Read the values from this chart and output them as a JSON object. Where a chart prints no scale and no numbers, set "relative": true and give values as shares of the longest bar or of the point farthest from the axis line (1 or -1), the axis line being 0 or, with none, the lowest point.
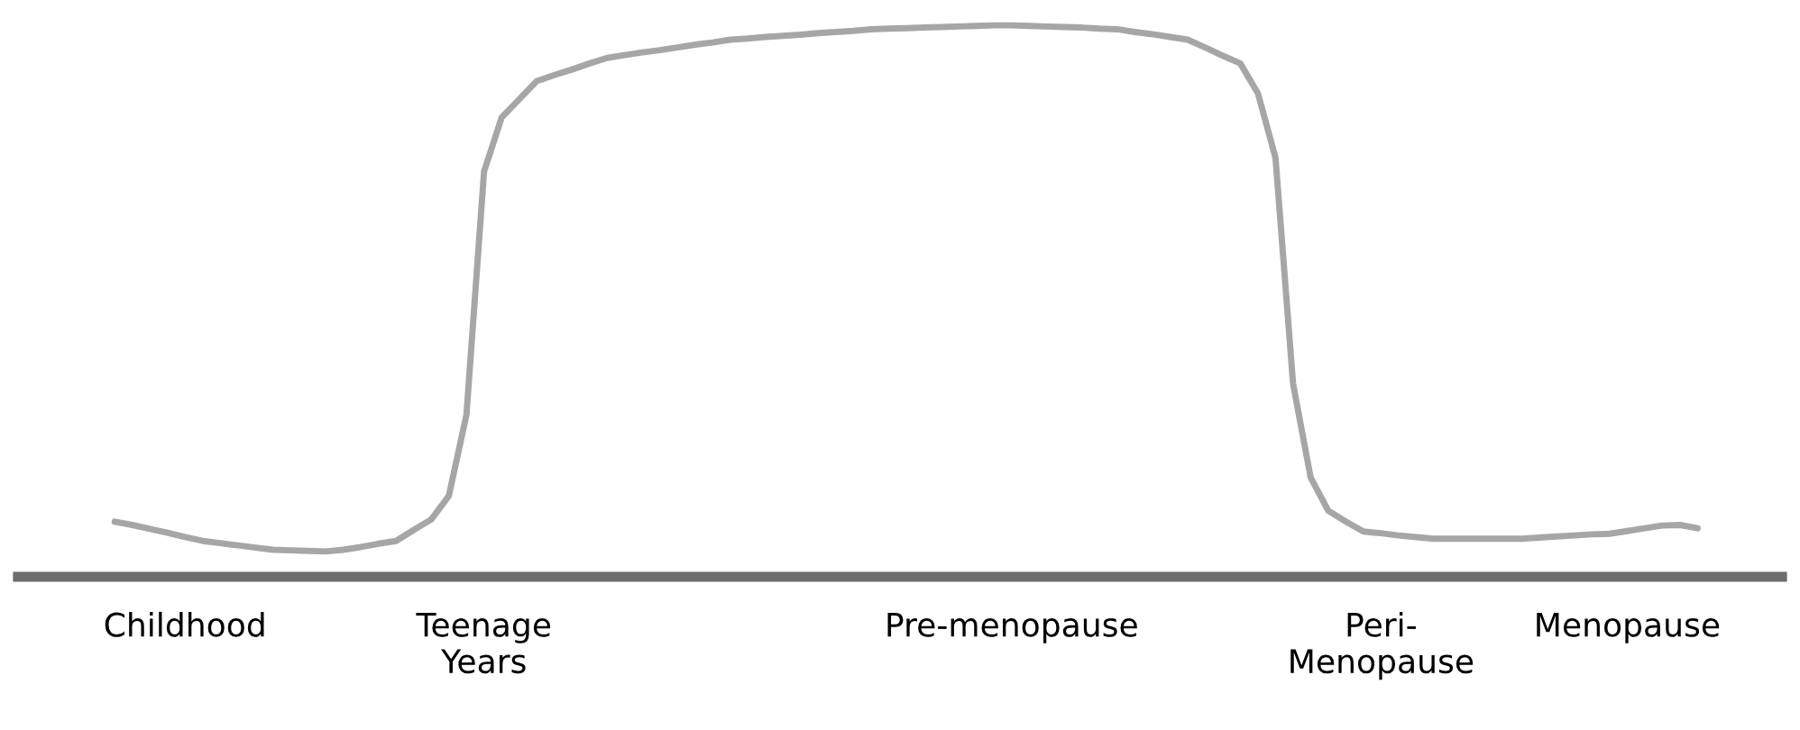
{
  "chart_data": {
    "type": "line",
    "relative": true,
    "categories": [
      null,
      null,
      null,
      null,
      "Childhood",
      null,
      null,
      null,
      null,
      null,
      null,
      null,
      null,
      null,
      null,
      null,
      null,
      null,
      null,
      null,
      null,
      "Teenage\nYears",
      null,
      null,
      null,
      null,
      null,
      null,
      null,
      null,
      null,
      null,
      null,
      null,
      null,
      null,
      null,
      null,
      null,
      null,
      null,
      null,
      null,
      null,
      null,
      null,
      null,
      null,
      null,
      null,
      null,
      "Pre-menopause",
      null,
      null,
      null,
      null,
      null,
      null,
      null,
      null,
      null,
      null,
      null,
      null,
      null,
      null,
      null,
      null,
      null,
      null,
      null,
      null,
      "Peri-\nMenopause",
      null,
      null,
      null,
      null,
      null,
      null,
      null,
      null,
      null,
      null,
      null,
      null,
      null,
      "Menopause",
      null,
      null,
      null,
      null
    ],
    "series": [
      {
        "color": "#a6a6a6",
        "values": [
          0.1,
          0.094,
          0.087,
          0.08,
          0.072,
          0.065,
          0.061,
          0.057,
          0.053,
          0.049,
          0.048,
          0.047,
          0.046,
          0.049,
          0.054,
          0.06,
          0.065,
          0.085,
          0.104,
          0.147,
          0.294,
          0.735,
          0.833,
          0.866,
          0.899,
          0.91,
          0.92,
          0.931,
          0.941,
          0.946,
          0.951,
          0.955,
          0.96,
          0.965,
          0.969,
          0.974,
          0.976,
          0.979,
          0.981,
          0.983,
          0.986,
          0.988,
          0.99,
          0.993,
          0.994,
          0.995,
          0.996,
          0.997,
          0.998,
          0.999,
          1.0,
          1.0,
          0.999,
          0.998,
          0.997,
          0.996,
          0.994,
          0.993,
          0.988,
          0.984,
          0.979,
          0.974,
          0.96,
          0.945,
          0.931,
          0.877,
          0.76,
          0.35,
          0.18,
          0.12,
          0.1,
          0.082,
          0.079,
          0.075,
          0.072,
          0.069,
          0.069,
          0.069,
          0.069,
          0.069,
          0.069,
          0.071,
          0.073,
          0.075,
          0.077,
          0.078,
          0.083,
          0.088,
          0.093,
          0.094,
          0.088
        ]
      }
    ],
    "grid": false,
    "legend": false,
    "marker": "none",
    "line_style": "solid"
  }
}
